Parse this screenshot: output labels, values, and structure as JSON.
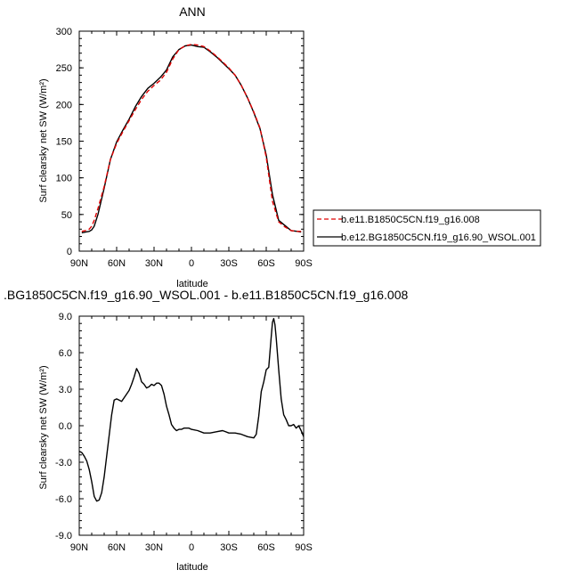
{
  "chart_data": [
    {
      "type": "line",
      "title": "ANN",
      "xlabel": "latitude",
      "ylabel": "Surf clearsky net SW (W/m²)",
      "x_ticks": [
        -90,
        -60,
        -30,
        0,
        30,
        60,
        90
      ],
      "x_tick_labels": [
        "90N",
        "60N",
        "30N",
        "0",
        "30S",
        "60S",
        "90S"
      ],
      "xlim": [
        -90,
        90
      ],
      "ylim": [
        0,
        300
      ],
      "y_ticks": [
        0,
        50,
        100,
        150,
        200,
        250,
        300
      ],
      "y_tick_labels": [
        "0",
        "50",
        "100",
        "150",
        "200",
        "250",
        "300"
      ],
      "legend": "right, outside plot",
      "series": [
        {
          "name": "b.e11.B1850C5CN.f19_g16.008",
          "color": "#e00000",
          "dash": "dashed",
          "x": [
            -88,
            -85,
            -82,
            -80,
            -78,
            -75,
            -70,
            -65,
            -60,
            -55,
            -50,
            -45,
            -40,
            -35,
            -30,
            -25,
            -20,
            -15,
            -10,
            -5,
            0,
            5,
            10,
            15,
            20,
            25,
            30,
            35,
            40,
            45,
            50,
            55,
            60,
            65,
            70,
            75,
            80,
            85,
            88
          ],
          "y": [
            27,
            28,
            30,
            34,
            42,
            58,
            88,
            125,
            147,
            163,
            178,
            193,
            207,
            218,
            226,
            233,
            244,
            262,
            275,
            280,
            282,
            281,
            279,
            273,
            266,
            258,
            250,
            240,
            226,
            209,
            190,
            168,
            128,
            68,
            40,
            33,
            28,
            27,
            27
          ]
        },
        {
          "name": "b.e12.BG1850C5CN.f19_g16.90_WSOL.001",
          "color": "#000000",
          "dash": "solid",
          "x": [
            -88,
            -85,
            -82,
            -80,
            -78,
            -75,
            -70,
            -65,
            -60,
            -55,
            -50,
            -45,
            -40,
            -35,
            -30,
            -25,
            -20,
            -15,
            -10,
            -5,
            0,
            5,
            10,
            15,
            20,
            25,
            30,
            35,
            40,
            45,
            50,
            55,
            60,
            65,
            70,
            75,
            80,
            85,
            88
          ],
          "y": [
            25,
            26,
            27,
            29,
            34,
            50,
            86,
            125,
            149,
            165,
            180,
            197,
            211,
            222,
            229,
            237,
            247,
            265,
            275,
            280,
            281,
            279,
            278,
            272,
            265,
            257,
            249,
            240,
            226,
            209,
            189,
            167,
            131,
            77,
            42,
            35,
            28,
            27,
            26
          ]
        }
      ]
    },
    {
      "type": "line",
      "title": ".BG1850C5CN.f19_g16.90_WSOL.001 - b.e11.B1850C5CN.f19_g16.008",
      "xlabel": "latitude",
      "ylabel": "Surf clearsky net SW (W/m²)",
      "x_ticks": [
        -90,
        -60,
        -30,
        0,
        30,
        60,
        90
      ],
      "x_tick_labels": [
        "90N",
        "60N",
        "30N",
        "0",
        "30S",
        "60S",
        "90S"
      ],
      "xlim": [
        -90,
        90
      ],
      "ylim": [
        -9,
        9
      ],
      "y_ticks": [
        -9,
        -6,
        -3,
        0,
        3,
        6,
        9
      ],
      "y_tick_labels": [
        "-9.0",
        "-6.0",
        "-3.0",
        "0.0",
        "3.0",
        "6.0",
        "9.0"
      ],
      "series": [
        {
          "color": "#000000",
          "dash": "solid",
          "x": [
            -90,
            -88,
            -86,
            -84,
            -82,
            -80,
            -78,
            -76,
            -74,
            -72,
            -70,
            -68,
            -66,
            -64,
            -62,
            -60,
            -58,
            -56,
            -54,
            -52,
            -50,
            -48,
            -46,
            -44,
            -42,
            -40,
            -38,
            -36,
            -34,
            -32,
            -30,
            -28,
            -26,
            -24,
            -22,
            -20,
            -18,
            -16,
            -14,
            -12,
            -10,
            -8,
            -6,
            -4,
            -2,
            0,
            5,
            10,
            15,
            20,
            25,
            30,
            35,
            40,
            45,
            50,
            52,
            54,
            56,
            58,
            60,
            62,
            64,
            65,
            66,
            67,
            68,
            70,
            72,
            74,
            76,
            78,
            80,
            82,
            84,
            86,
            88,
            90
          ],
          "y": [
            -2.1,
            -2.2,
            -2.5,
            -2.9,
            -3.6,
            -4.6,
            -5.8,
            -6.2,
            -6.1,
            -5.5,
            -4.2,
            -2.5,
            -0.8,
            0.9,
            2.1,
            2.2,
            2.1,
            2.0,
            2.3,
            2.6,
            2.9,
            3.4,
            4.0,
            4.7,
            4.3,
            3.6,
            3.4,
            3.1,
            3.2,
            3.4,
            3.3,
            3.5,
            3.5,
            3.3,
            2.6,
            1.6,
            0.9,
            0.1,
            -0.2,
            -0.4,
            -0.3,
            -0.3,
            -0.2,
            -0.2,
            -0.2,
            -0.3,
            -0.4,
            -0.6,
            -0.6,
            -0.5,
            -0.4,
            -0.6,
            -0.6,
            -0.7,
            -0.9,
            -1.0,
            -0.7,
            0.8,
            2.8,
            3.6,
            4.6,
            4.8,
            7.3,
            8.5,
            8.8,
            8.3,
            7.2,
            4.6,
            2.2,
            0.9,
            0.5,
            0.0,
            0.0,
            0.1,
            -0.2,
            0.0,
            -0.4,
            -0.9
          ]
        }
      ]
    }
  ]
}
